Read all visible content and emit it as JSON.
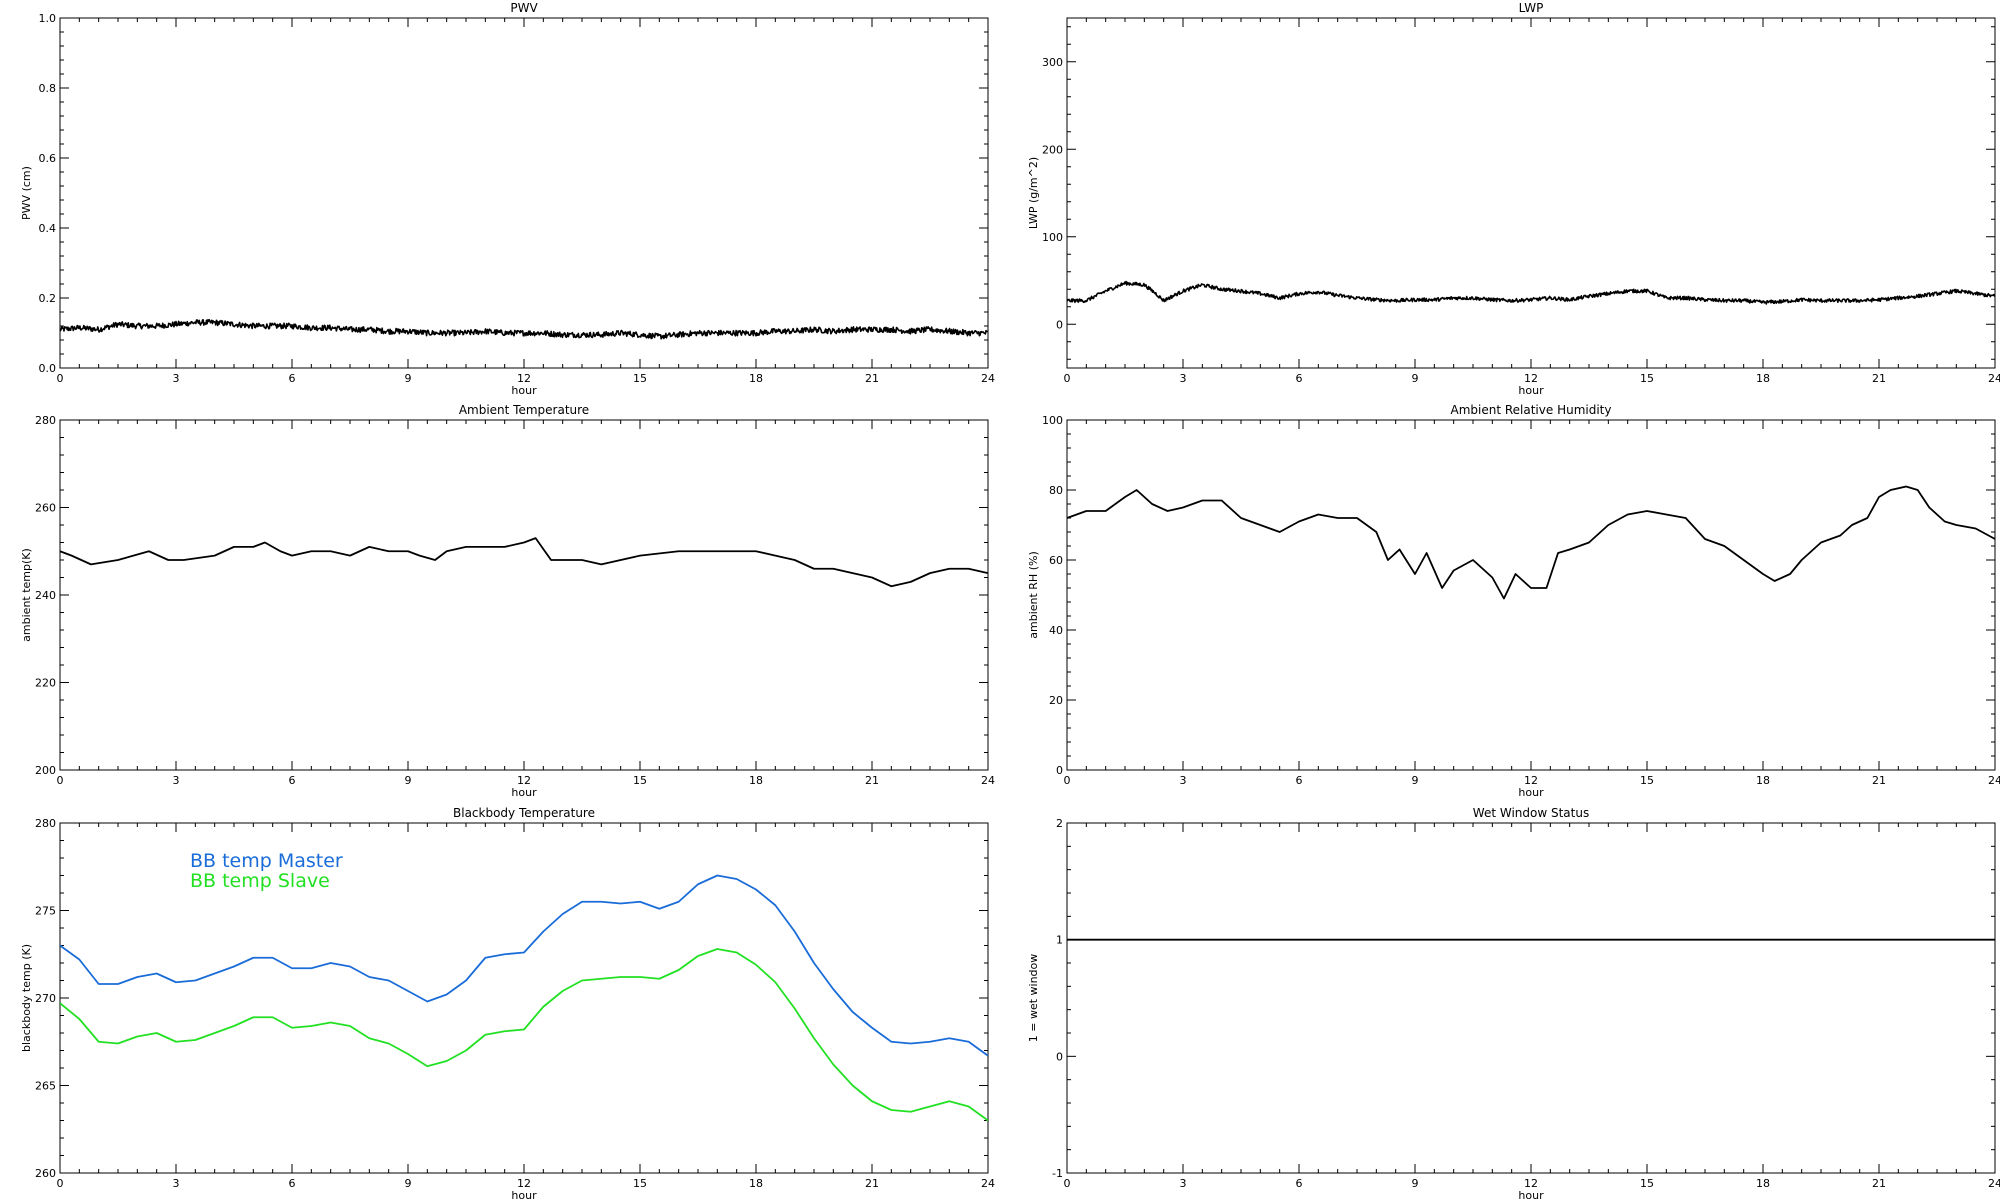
{
  "chart_data": [
    {
      "id": "pwv",
      "type": "line",
      "title": "PWV",
      "xlabel": "hour",
      "ylabel": "PWV (cm)",
      "xlim": [
        0,
        24
      ],
      "ylim": [
        0,
        1
      ],
      "x_ticks": [
        0,
        3,
        6,
        9,
        12,
        15,
        18,
        21,
        24
      ],
      "y_ticks": [
        "0.0",
        "0.2",
        "0.4",
        "0.6",
        "0.8",
        "1.0"
      ],
      "noise": 0.008,
      "series": [
        {
          "color": "#000000",
          "x": [
            0,
            0.5,
            1,
            1.5,
            2,
            2.5,
            3,
            3.5,
            4,
            4.5,
            5,
            5.5,
            6,
            6.5,
            7,
            7.5,
            8,
            8.5,
            9,
            9.5,
            10,
            10.5,
            11,
            11.5,
            12,
            12.5,
            13,
            13.5,
            14,
            14.5,
            15,
            15.5,
            16,
            16.5,
            17,
            17.5,
            18,
            18.5,
            19,
            19.5,
            20,
            20.5,
            21,
            21.5,
            22,
            22.5,
            23,
            23.5,
            24
          ],
          "y": [
            0.11,
            0.115,
            0.11,
            0.125,
            0.12,
            0.12,
            0.125,
            0.13,
            0.13,
            0.125,
            0.12,
            0.12,
            0.12,
            0.115,
            0.115,
            0.11,
            0.11,
            0.105,
            0.105,
            0.1,
            0.1,
            0.1,
            0.105,
            0.1,
            0.1,
            0.1,
            0.095,
            0.095,
            0.095,
            0.1,
            0.095,
            0.09,
            0.095,
            0.1,
            0.1,
            0.1,
            0.1,
            0.105,
            0.105,
            0.11,
            0.105,
            0.11,
            0.11,
            0.11,
            0.105,
            0.11,
            0.105,
            0.1,
            0.1
          ]
        }
      ]
    },
    {
      "id": "lwp",
      "type": "line",
      "title": "LWP",
      "xlabel": "hour",
      "ylabel": "LWP (g/m^2)",
      "xlim": [
        0,
        24
      ],
      "ylim": [
        -50,
        350
      ],
      "x_ticks": [
        0,
        3,
        6,
        9,
        12,
        15,
        18,
        21,
        24
      ],
      "y_ticks": [
        "0",
        "100",
        "200",
        "300"
      ],
      "noise": 2,
      "series": [
        {
          "color": "#000000",
          "x": [
            0,
            0.5,
            1,
            1.5,
            2,
            2.3,
            2.5,
            3,
            3.5,
            4,
            4.5,
            5,
            5.5,
            6,
            6.5,
            7,
            7.5,
            8,
            8.5,
            9,
            9.5,
            10,
            10.5,
            11,
            11.5,
            12,
            12.5,
            13,
            13.5,
            14,
            14.5,
            15,
            15.2,
            15.5,
            16,
            16.5,
            17,
            17.5,
            18,
            18.5,
            19,
            19.5,
            20,
            20.5,
            21,
            21.5,
            22,
            22.5,
            23,
            23.5,
            24
          ],
          "y": [
            27,
            27,
            38,
            47,
            45,
            35,
            27,
            38,
            45,
            40,
            38,
            35,
            30,
            35,
            37,
            33,
            30,
            28,
            27,
            28,
            28,
            30,
            30,
            28,
            27,
            28,
            30,
            28,
            32,
            35,
            38,
            38,
            35,
            30,
            30,
            28,
            27,
            27,
            25,
            26,
            28,
            27,
            27,
            27,
            28,
            30,
            32,
            35,
            38,
            35,
            32
          ]
        }
      ]
    },
    {
      "id": "ambient-temp",
      "type": "line",
      "title": "Ambient Temperature",
      "xlabel": "hour",
      "ylabel": "ambient temp(K)",
      "xlim": [
        0,
        24
      ],
      "ylim": [
        200,
        280
      ],
      "x_ticks": [
        0,
        3,
        6,
        9,
        12,
        15,
        18,
        21,
        24
      ],
      "y_ticks": [
        "200",
        "220",
        "240",
        "260",
        "280"
      ],
      "noise": 0,
      "series": [
        {
          "color": "#000000",
          "x": [
            0,
            0.3,
            0.8,
            1.5,
            2.3,
            2.8,
            3.2,
            4,
            4.5,
            5,
            5.3,
            5.7,
            6,
            6.5,
            7,
            7.5,
            8,
            8.5,
            9,
            9.3,
            9.7,
            10,
            10.5,
            11,
            11.5,
            12,
            12.3,
            12.7,
            13.5,
            14,
            15,
            16,
            16.5,
            17,
            17.5,
            18,
            18.5,
            19,
            19.5,
            20,
            20.5,
            21,
            21.5,
            22,
            22.5,
            23,
            23.5,
            24
          ],
          "y": [
            250,
            249,
            247,
            248,
            250,
            248,
            248,
            249,
            251,
            251,
            252,
            250,
            249,
            250,
            250,
            249,
            251,
            250,
            250,
            249,
            248,
            250,
            251,
            251,
            251,
            252,
            253,
            248,
            248,
            247,
            249,
            250,
            250,
            250,
            250,
            250,
            249,
            248,
            246,
            246,
            245,
            244,
            242,
            243,
            245,
            246,
            246,
            245
          ]
        }
      ]
    },
    {
      "id": "ambient-rh",
      "type": "line",
      "title": "Ambient Relative Humidity",
      "xlabel": "hour",
      "ylabel": "ambient RH (%)",
      "xlim": [
        0,
        24
      ],
      "ylim": [
        0,
        100
      ],
      "x_ticks": [
        0,
        3,
        6,
        9,
        12,
        15,
        18,
        21,
        24
      ],
      "y_ticks": [
        "0",
        "20",
        "40",
        "60",
        "80",
        "100"
      ],
      "noise": 0,
      "series": [
        {
          "color": "#000000",
          "x": [
            0,
            0.5,
            1,
            1.5,
            1.8,
            2.2,
            2.6,
            3,
            3.5,
            4,
            4.5,
            5,
            5.5,
            6,
            6.5,
            7,
            7.5,
            8,
            8.3,
            8.6,
            9,
            9.3,
            9.7,
            10,
            10.5,
            11,
            11.3,
            11.6,
            12,
            12.4,
            12.7,
            13,
            13.5,
            14,
            14.5,
            15,
            15.5,
            16,
            16.5,
            17,
            17.5,
            18,
            18.3,
            18.7,
            19,
            19.5,
            20,
            20.3,
            20.7,
            21,
            21.3,
            21.7,
            22,
            22.3,
            22.7,
            23,
            23.5,
            24
          ],
          "y": [
            72,
            74,
            74,
            78,
            80,
            76,
            74,
            75,
            77,
            77,
            72,
            70,
            68,
            71,
            73,
            72,
            72,
            68,
            60,
            63,
            56,
            62,
            52,
            57,
            60,
            55,
            49,
            56,
            52,
            52,
            62,
            63,
            65,
            70,
            73,
            74,
            73,
            72,
            66,
            64,
            60,
            56,
            54,
            56,
            60,
            65,
            67,
            70,
            72,
            78,
            80,
            81,
            80,
            75,
            71,
            70,
            69,
            66
          ]
        }
      ]
    },
    {
      "id": "bb-temp",
      "type": "line",
      "title": "Blackbody Temperature",
      "xlabel": "hour",
      "ylabel": "blackbody temp (K)",
      "xlim": [
        0,
        24
      ],
      "ylim": [
        260,
        280
      ],
      "x_ticks": [
        0,
        3,
        6,
        9,
        12,
        15,
        18,
        21,
        24
      ],
      "y_ticks": [
        "260",
        "265",
        "270",
        "275",
        "280"
      ],
      "noise": 0,
      "legend": [
        "BB temp Master",
        "BB temp Slave"
      ],
      "series": [
        {
          "name": "BB temp Master",
          "color": "#1a6cd8",
          "x": [
            0,
            0.5,
            1,
            1.5,
            2,
            2.5,
            3,
            3.5,
            4,
            4.5,
            5,
            5.5,
            6,
            6.5,
            7,
            7.5,
            8,
            8.5,
            9,
            9.5,
            10,
            10.5,
            11,
            11.5,
            12,
            12.5,
            13,
            13.5,
            14,
            14.5,
            15,
            15.5,
            16,
            16.5,
            17,
            17.5,
            18,
            18.5,
            19,
            19.5,
            20,
            20.5,
            21,
            21.5,
            22,
            22.5,
            23,
            23.5,
            24
          ],
          "y": [
            273,
            272.2,
            270.8,
            270.8,
            271.2,
            271.4,
            270.9,
            271,
            271.4,
            271.8,
            272.3,
            272.3,
            271.7,
            271.7,
            272,
            271.8,
            271.2,
            271,
            270.4,
            269.8,
            270.2,
            271,
            272.3,
            272.5,
            272.6,
            273.8,
            274.8,
            275.5,
            275.5,
            275.4,
            275.5,
            275.1,
            275.5,
            276.5,
            277,
            276.8,
            276.2,
            275.3,
            273.8,
            272,
            270.5,
            269.2,
            268.3,
            267.5,
            267.4,
            267.5,
            267.7,
            267.5,
            266.7
          ]
        },
        {
          "name": "BB temp Slave",
          "color": "#22e022",
          "x": [
            0,
            0.5,
            1,
            1.5,
            2,
            2.5,
            3,
            3.5,
            4,
            4.5,
            5,
            5.5,
            6,
            6.5,
            7,
            7.5,
            8,
            8.5,
            9,
            9.5,
            10,
            10.5,
            11,
            11.5,
            12,
            12.5,
            13,
            13.5,
            14,
            14.5,
            15,
            15.5,
            16,
            16.5,
            17,
            17.5,
            18,
            18.5,
            19,
            19.5,
            20,
            20.5,
            21,
            21.5,
            22,
            22.5,
            23,
            23.5,
            24
          ],
          "y": [
            269.7,
            268.8,
            267.5,
            267.4,
            267.8,
            268,
            267.5,
            267.6,
            268,
            268.4,
            268.9,
            268.9,
            268.3,
            268.4,
            268.6,
            268.4,
            267.7,
            267.4,
            266.8,
            266.1,
            266.4,
            267,
            267.9,
            268.1,
            268.2,
            269.5,
            270.4,
            271,
            271.1,
            271.2,
            271.2,
            271.1,
            271.6,
            272.4,
            272.8,
            272.6,
            271.9,
            270.9,
            269.4,
            267.7,
            266.2,
            265,
            264.1,
            263.6,
            263.5,
            263.8,
            264.1,
            263.8,
            263
          ]
        }
      ]
    },
    {
      "id": "wet-window",
      "type": "line",
      "title": "Wet Window Status",
      "xlabel": "hour",
      "ylabel": "1 = wet window",
      "xlim": [
        0,
        24
      ],
      "ylim": [
        -1,
        2
      ],
      "x_ticks": [
        0,
        3,
        6,
        9,
        12,
        15,
        18,
        21,
        24
      ],
      "y_ticks": [
        "-1",
        "0",
        "1",
        "2"
      ],
      "noise": 0,
      "series": [
        {
          "color": "#000000",
          "x": [
            0,
            24
          ],
          "y": [
            1,
            1
          ]
        }
      ]
    }
  ]
}
